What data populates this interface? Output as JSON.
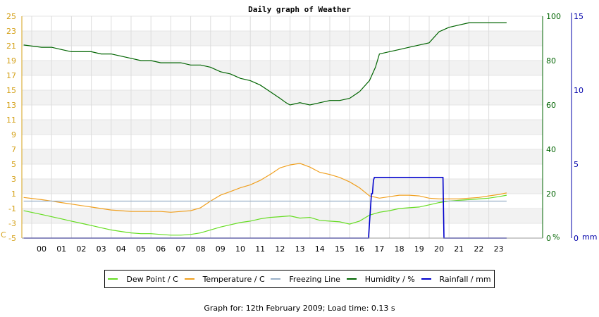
{
  "chart_data": {
    "type": "line",
    "title": "Daily graph of Weather",
    "x_ticks": [
      "00",
      "01",
      "02",
      "03",
      "04",
      "05",
      "06",
      "07",
      "08",
      "09",
      "10",
      "11",
      "12",
      "13",
      "14",
      "15",
      "16",
      "17",
      "18",
      "19",
      "20",
      "21",
      "22",
      "23"
    ],
    "y_left": {
      "label": "C",
      "ticks": [
        25,
        23,
        21,
        19,
        17,
        15,
        13,
        11,
        9,
        7,
        5,
        3,
        1,
        -1,
        -3,
        -5
      ],
      "ylim": [
        -5,
        25
      ],
      "color": "#d4a017"
    },
    "y_humidity": {
      "label": "%",
      "ticks": [
        100,
        80,
        60,
        40,
        20,
        0
      ],
      "ylim": [
        0,
        100
      ],
      "color": "#006400"
    },
    "y_rain": {
      "label": "mm",
      "ticks": [
        15,
        10,
        5,
        0
      ],
      "ylim": [
        0,
        15
      ],
      "color": "#0000aa"
    },
    "grid": true,
    "series": [
      {
        "name": "Dew Point / C",
        "color": "#66dd22",
        "axis": "left",
        "x": [
          -0.9,
          0,
          0.5,
          1,
          1.5,
          2,
          2.5,
          3,
          3.5,
          4,
          4.5,
          5,
          5.5,
          6,
          6.5,
          7,
          7.5,
          8,
          8.5,
          9,
          9.5,
          10,
          10.5,
          11,
          11.5,
          12,
          12.5,
          13,
          13.5,
          14,
          14.5,
          15,
          15.5,
          16,
          16.5,
          17,
          17.5,
          18,
          18.5,
          19,
          19.5,
          20,
          20.5,
          21,
          21.5,
          22,
          22.5,
          23,
          23.4
        ],
        "values": [
          -1.3,
          -1.8,
          -2.1,
          -2.4,
          -2.7,
          -3.0,
          -3.3,
          -3.6,
          -3.9,
          -4.1,
          -4.3,
          -4.4,
          -4.4,
          -4.5,
          -4.6,
          -4.6,
          -4.5,
          -4.3,
          -3.9,
          -3.5,
          -3.2,
          -2.9,
          -2.7,
          -2.4,
          -2.2,
          -2.1,
          -2.0,
          -2.3,
          -2.2,
          -2.6,
          -2.7,
          -2.8,
          -3.1,
          -2.7,
          -1.9,
          -1.5,
          -1.3,
          -1.0,
          -0.9,
          -0.8,
          -0.5,
          -0.2,
          0.0,
          0.1,
          0.2,
          0.3,
          0.4,
          0.6,
          0.8
        ]
      },
      {
        "name": "Temperature / C",
        "color": "#f0a020",
        "axis": "left",
        "x": [
          -0.9,
          0,
          0.5,
          1,
          1.5,
          2,
          2.5,
          3,
          3.5,
          4,
          4.5,
          5,
          5.5,
          6,
          6.5,
          7,
          7.5,
          8,
          8.5,
          9,
          9.5,
          10,
          10.5,
          11,
          11.5,
          12,
          12.5,
          13,
          13.5,
          14,
          14.5,
          15,
          15.5,
          16,
          16.5,
          17,
          17.5,
          18,
          18.5,
          19,
          19.5,
          20,
          20.5,
          21,
          21.5,
          22,
          22.5,
          23,
          23.4
        ],
        "values": [
          0.5,
          0.2,
          0.0,
          -0.2,
          -0.4,
          -0.6,
          -0.8,
          -1.0,
          -1.2,
          -1.3,
          -1.4,
          -1.4,
          -1.4,
          -1.4,
          -1.5,
          -1.4,
          -1.3,
          -0.9,
          0.0,
          0.8,
          1.3,
          1.8,
          2.2,
          2.8,
          3.6,
          4.5,
          4.9,
          5.1,
          4.6,
          3.9,
          3.6,
          3.2,
          2.6,
          1.8,
          0.7,
          0.4,
          0.6,
          0.8,
          0.8,
          0.7,
          0.4,
          0.3,
          0.3,
          0.3,
          0.4,
          0.5,
          0.7,
          0.9,
          1.1
        ]
      },
      {
        "name": "Freezing Line",
        "color": "#99b0c8",
        "axis": "left",
        "x": [
          -0.9,
          23.4
        ],
        "values": [
          0,
          0
        ]
      },
      {
        "name": "Humidity / %",
        "color": "#006400",
        "axis": "humidity",
        "x": [
          -0.9,
          0,
          0.5,
          1,
          1.5,
          2,
          2.5,
          3,
          3.5,
          4,
          4.5,
          5,
          5.5,
          6,
          6.5,
          7,
          7.5,
          8,
          8.5,
          9,
          9.5,
          10,
          10.5,
          11,
          11.5,
          12,
          12.3,
          12.5,
          13,
          13.5,
          14,
          14.5,
          15,
          15.5,
          16,
          16.5,
          16.8,
          17,
          17.5,
          18,
          18.5,
          19,
          19.5,
          20,
          20.5,
          21,
          21.5,
          22,
          22.5,
          23,
          23.4
        ],
        "values": [
          87,
          86,
          86,
          85,
          84,
          84,
          84,
          83,
          83,
          82,
          81,
          80,
          80,
          79,
          79,
          79,
          78,
          78,
          77,
          75,
          74,
          72,
          71,
          69,
          66,
          63,
          61,
          60,
          61,
          60,
          61,
          62,
          62,
          63,
          66,
          71,
          77,
          83,
          84,
          85,
          86,
          87,
          88,
          93,
          95,
          96,
          97,
          97,
          97,
          97,
          97
        ]
      },
      {
        "name": "Rainfall / mm",
        "color": "#0000cc",
        "axis": "rain",
        "x": [
          -0.9,
          16.45,
          16.5,
          16.55,
          16.6,
          16.65,
          16.7,
          16.75,
          20.2,
          20.25,
          23.4
        ],
        "values": [
          0,
          0,
          1.0,
          2.0,
          3.0,
          3.0,
          3.9,
          4.1,
          4.1,
          0,
          0
        ]
      }
    ]
  },
  "footer": "Graph for: 12th February 2009; Load time: 0.13 s"
}
